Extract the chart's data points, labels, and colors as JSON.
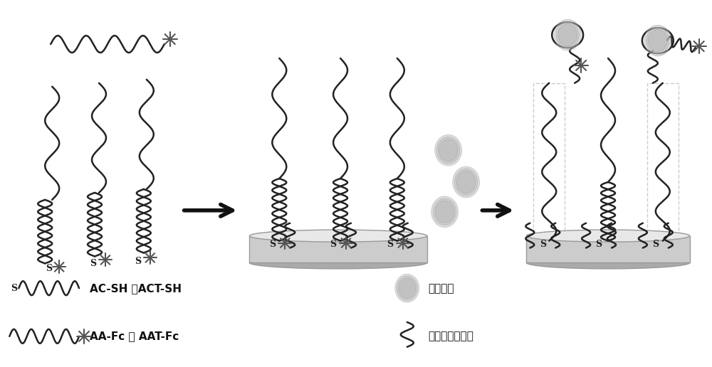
{
  "bg_color": "#ffffff",
  "line_color": "#222222",
  "star_color": "#555555",
  "electrode_face": "#cccccc",
  "electrode_edge": "#999999",
  "electrode_bottom": "#aaaaaa",
  "ampicillin_color": "#bbbbbb",
  "ampicillin_edge": "#999999",
  "legend": {
    "ac_sh": "AC-SH 或ACT-SH",
    "aa_fc": "AA-Fc 或 AAT-Fc",
    "ampicillin": "氨苄西林",
    "self_assembly": "各种自组装分子"
  }
}
